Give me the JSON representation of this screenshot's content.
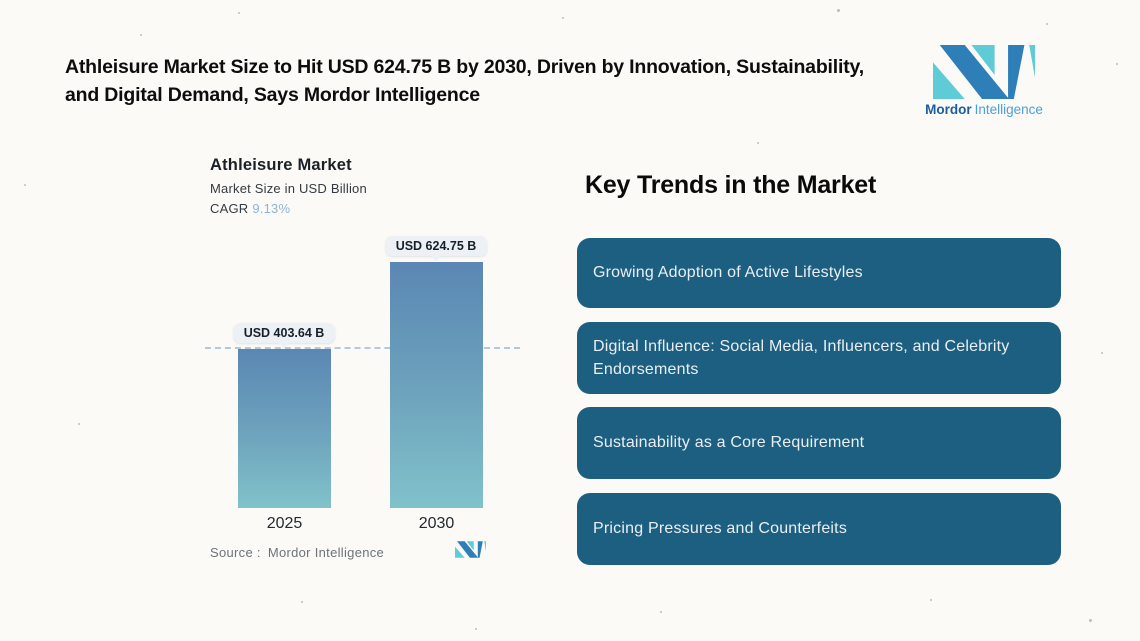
{
  "header": {
    "title_line1": "Athleisure Market Size to Hit USD 624.75 B by 2030, Driven by Innovation, Sustainability,",
    "title_line2": "and Digital Demand, Says Mordor Intelligence"
  },
  "brand": {
    "name_bold": "Mordor",
    "name_light": "Intelligence",
    "logo_blue": "#2e7eb8",
    "logo_teal": "#5fcbd6"
  },
  "chart": {
    "title": "Athleisure Market",
    "subtitle": "Market Size in USD Billion",
    "cagr_label": "CAGR",
    "cagr_value": "9.13%",
    "bars": [
      {
        "year": "2025",
        "label": "USD 403.64 B",
        "value": 403.64
      },
      {
        "year": "2030",
        "label": "USD 624.75 B",
        "value": 624.75
      }
    ],
    "source_label": "Source :",
    "source_value": "Mordor Intelligence"
  },
  "trends": {
    "heading": "Key Trends in the Market",
    "items": [
      "Growing Adoption of Active Lifestyles",
      "Digital Influence: Social Media, Influencers, and Celebrity Endorsements",
      "Sustainability as a Core Requirement",
      "Pricing Pressures and Counterfeits"
    ]
  },
  "colors": {
    "background": "#fbfaf7",
    "card": "#1d5f80",
    "card_text": "#e9eff3",
    "bar_gradient_top": "#5a87b3",
    "bar_gradient_bottom": "#81c2ca",
    "reference_line": "#b3c8da",
    "cagr_value": "#8cb4d6",
    "callout_bg": "#edf1f5"
  },
  "chart_data": {
    "type": "bar",
    "categories": [
      "2025",
      "2030"
    ],
    "values": [
      403.64,
      624.75
    ],
    "title": "Athleisure Market",
    "subtitle": "Market Size in USD Billion",
    "cagr": "9.13%",
    "xlabel": "",
    "ylabel": "Market Size in USD Billion",
    "ylim": [
      0,
      700
    ],
    "data_labels": [
      "USD 403.64 B",
      "USD 624.75 B"
    ],
    "reference_line_value": 403.64,
    "grid": false,
    "legend": false,
    "source": "Source : Mordor Intelligence"
  }
}
